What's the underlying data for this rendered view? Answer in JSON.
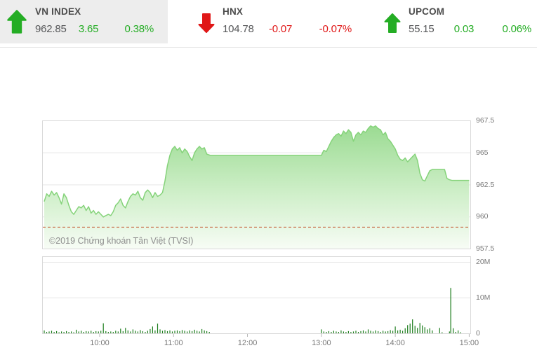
{
  "header": {
    "indices": [
      {
        "name": "VN INDEX",
        "value": "962.85",
        "change": "3.65",
        "change_pct": "0.38%",
        "direction": "up",
        "highlighted": true
      },
      {
        "name": "HNX",
        "value": "104.78",
        "change": "-0.07",
        "change_pct": "-0.07%",
        "direction": "down",
        "highlighted": false
      },
      {
        "name": "UPCOM",
        "value": "55.15",
        "change": "0.03",
        "change_pct": "0.06%",
        "direction": "up",
        "highlighted": false
      }
    ],
    "colors": {
      "up": "#24ad24",
      "down": "#e01717"
    }
  },
  "chart": {
    "copyright": "©2019 Chứng khoán Tân Việt (TVSI)",
    "colors": {
      "area_top": "#9bdb92",
      "area_mid": "#cfefc9",
      "area_bottom": "#f7fcf5",
      "line": "#85d37a",
      "volume_bar": "#1e7e1e",
      "ref_line": "#c25227",
      "gridline": "#e5e5e5",
      "plot_border": "#d9d9d9"
    }
  },
  "chart_data": [
    {
      "type": "area",
      "title": "VN-Index intraday price",
      "y_axis": {
        "min": 957.5,
        "max": 967.5,
        "ticks": [
          "967.5",
          "965",
          "962.5",
          "960",
          "957.5"
        ],
        "tick_values": [
          967.5,
          965,
          962.5,
          960,
          957.5
        ]
      },
      "x_axis": {
        "start": "09:00",
        "end": "15:00",
        "ticks": [
          "10:00",
          "11:00",
          "12:00",
          "13:00",
          "14:00",
          "15:00"
        ]
      },
      "previous_close": 959.2,
      "points": [
        [
          "09:15",
          961.2
        ],
        [
          "09:17",
          961.8
        ],
        [
          "09:19",
          961.6
        ],
        [
          "09:21",
          962.0
        ],
        [
          "09:23",
          961.7
        ],
        [
          "09:25",
          961.9
        ],
        [
          "09:27",
          961.5
        ],
        [
          "09:29",
          961.0
        ],
        [
          "09:31",
          961.8
        ],
        [
          "09:33",
          961.5
        ],
        [
          "09:35",
          960.9
        ],
        [
          "09:37",
          960.4
        ],
        [
          "09:39",
          960.2
        ],
        [
          "09:41",
          960.5
        ],
        [
          "09:43",
          960.8
        ],
        [
          "09:45",
          960.7
        ],
        [
          "09:47",
          960.9
        ],
        [
          "09:49",
          960.5
        ],
        [
          "09:51",
          960.8
        ],
        [
          "09:53",
          960.3
        ],
        [
          "09:55",
          960.5
        ],
        [
          "09:57",
          960.2
        ],
        [
          "09:59",
          960.4
        ],
        [
          "10:01",
          960.2
        ],
        [
          "10:03",
          960.0
        ],
        [
          "10:05",
          960.1
        ],
        [
          "10:07",
          960.2
        ],
        [
          "10:09",
          960.1
        ],
        [
          "10:11",
          960.4
        ],
        [
          "10:13",
          960.9
        ],
        [
          "10:15",
          961.1
        ],
        [
          "10:17",
          961.4
        ],
        [
          "10:19",
          960.9
        ],
        [
          "10:21",
          960.7
        ],
        [
          "10:23",
          961.2
        ],
        [
          "10:25",
          961.6
        ],
        [
          "10:27",
          961.8
        ],
        [
          "10:29",
          961.7
        ],
        [
          "10:31",
          962.0
        ],
        [
          "10:33",
          961.5
        ],
        [
          "10:35",
          961.3
        ],
        [
          "10:37",
          961.9
        ],
        [
          "10:39",
          962.1
        ],
        [
          "10:41",
          961.9
        ],
        [
          "10:43",
          961.5
        ],
        [
          "10:45",
          961.9
        ],
        [
          "10:47",
          961.6
        ],
        [
          "10:49",
          961.7
        ],
        [
          "10:51",
          961.9
        ],
        [
          "10:53",
          962.8
        ],
        [
          "10:55",
          964.0
        ],
        [
          "10:57",
          964.8
        ],
        [
          "10:59",
          965.3
        ],
        [
          "11:01",
          965.5
        ],
        [
          "11:03",
          965.2
        ],
        [
          "11:05",
          965.4
        ],
        [
          "11:07",
          965.0
        ],
        [
          "11:09",
          965.3
        ],
        [
          "11:11",
          965.1
        ],
        [
          "11:13",
          964.7
        ],
        [
          "11:15",
          964.4
        ],
        [
          "11:17",
          965.0
        ],
        [
          "11:19",
          965.3
        ],
        [
          "11:21",
          965.5
        ],
        [
          "11:23",
          965.3
        ],
        [
          "11:25",
          965.4
        ],
        [
          "11:27",
          964.9
        ],
        [
          "11:30",
          964.8
        ],
        [
          "13:00",
          964.8
        ],
        [
          "13:02",
          965.2
        ],
        [
          "13:04",
          965.1
        ],
        [
          "13:06",
          965.5
        ],
        [
          "13:08",
          965.9
        ],
        [
          "13:10",
          966.2
        ],
        [
          "13:12",
          966.4
        ],
        [
          "13:14",
          966.5
        ],
        [
          "13:16",
          966.3
        ],
        [
          "13:18",
          966.7
        ],
        [
          "13:20",
          966.5
        ],
        [
          "13:22",
          966.8
        ],
        [
          "13:24",
          966.6
        ],
        [
          "13:26",
          965.9
        ],
        [
          "13:28",
          966.4
        ],
        [
          "13:30",
          966.6
        ],
        [
          "13:32",
          966.4
        ],
        [
          "13:34",
          966.7
        ],
        [
          "13:36",
          966.6
        ],
        [
          "13:38",
          966.9
        ],
        [
          "13:40",
          967.1
        ],
        [
          "13:42",
          967.0
        ],
        [
          "13:44",
          967.1
        ],
        [
          "13:46",
          966.9
        ],
        [
          "13:48",
          966.8
        ],
        [
          "13:50",
          966.4
        ],
        [
          "13:52",
          966.6
        ],
        [
          "13:54",
          966.1
        ],
        [
          "13:56",
          965.9
        ],
        [
          "13:58",
          965.6
        ],
        [
          "14:00",
          965.3
        ],
        [
          "14:02",
          964.8
        ],
        [
          "14:04",
          964.5
        ],
        [
          "14:06",
          964.4
        ],
        [
          "14:08",
          964.6
        ],
        [
          "14:10",
          964.3
        ],
        [
          "14:12",
          964.5
        ],
        [
          "14:14",
          964.7
        ],
        [
          "14:16",
          964.9
        ],
        [
          "14:18",
          964.4
        ],
        [
          "14:20",
          963.4
        ],
        [
          "14:22",
          962.9
        ],
        [
          "14:24",
          962.8
        ],
        [
          "14:26",
          963.2
        ],
        [
          "14:28",
          963.6
        ],
        [
          "14:30",
          963.7
        ],
        [
          "14:40",
          963.7
        ],
        [
          "14:42",
          963.0
        ],
        [
          "14:44",
          962.9
        ],
        [
          "14:46",
          962.85
        ],
        [
          "15:00",
          962.85
        ]
      ]
    },
    {
      "type": "bar",
      "title": "Trading volume",
      "unit": "M shares",
      "y_axis": {
        "min": 0,
        "max": 21.6,
        "ticks": [
          "20M",
          "10M",
          "0"
        ],
        "tick_values": [
          20,
          10,
          0
        ]
      },
      "points": [
        [
          "09:15",
          0.9
        ],
        [
          "09:17",
          0.5
        ],
        [
          "09:19",
          0.6
        ],
        [
          "09:21",
          0.8
        ],
        [
          "09:23",
          0.5
        ],
        [
          "09:25",
          0.7
        ],
        [
          "09:27",
          0.4
        ],
        [
          "09:29",
          0.6
        ],
        [
          "09:31",
          0.5
        ],
        [
          "09:33",
          0.7
        ],
        [
          "09:35",
          0.5
        ],
        [
          "09:37",
          0.6
        ],
        [
          "09:39",
          0.4
        ],
        [
          "09:41",
          1.1
        ],
        [
          "09:43",
          0.6
        ],
        [
          "09:45",
          0.8
        ],
        [
          "09:47",
          0.5
        ],
        [
          "09:49",
          0.7
        ],
        [
          "09:51",
          0.6
        ],
        [
          "09:53",
          0.8
        ],
        [
          "09:55",
          0.5
        ],
        [
          "09:57",
          0.7
        ],
        [
          "09:59",
          0.6
        ],
        [
          "10:01",
          0.8
        ],
        [
          "10:03",
          2.9
        ],
        [
          "10:05",
          0.7
        ],
        [
          "10:07",
          0.5
        ],
        [
          "10:09",
          0.6
        ],
        [
          "10:11",
          0.5
        ],
        [
          "10:13",
          0.8
        ],
        [
          "10:15",
          0.6
        ],
        [
          "10:17",
          1.4
        ],
        [
          "10:19",
          0.7
        ],
        [
          "10:21",
          1.6
        ],
        [
          "10:23",
          0.9
        ],
        [
          "10:25",
          0.6
        ],
        [
          "10:27",
          1.2
        ],
        [
          "10:29",
          0.8
        ],
        [
          "10:31",
          0.6
        ],
        [
          "10:33",
          1.0
        ],
        [
          "10:35",
          0.7
        ],
        [
          "10:37",
          0.5
        ],
        [
          "10:39",
          0.8
        ],
        [
          "10:41",
          1.3
        ],
        [
          "10:43",
          2.0
        ],
        [
          "10:45",
          0.9
        ],
        [
          "10:47",
          2.8
        ],
        [
          "10:49",
          1.2
        ],
        [
          "10:51",
          0.8
        ],
        [
          "10:53",
          1.0
        ],
        [
          "10:55",
          0.7
        ],
        [
          "10:57",
          0.9
        ],
        [
          "10:59",
          0.6
        ],
        [
          "11:01",
          0.8
        ],
        [
          "11:03",
          0.9
        ],
        [
          "11:05",
          0.7
        ],
        [
          "11:07",
          1.0
        ],
        [
          "11:09",
          0.8
        ],
        [
          "11:11",
          0.6
        ],
        [
          "11:13",
          0.9
        ],
        [
          "11:15",
          0.7
        ],
        [
          "11:17",
          1.1
        ],
        [
          "11:19",
          0.8
        ],
        [
          "11:21",
          0.6
        ],
        [
          "11:23",
          1.3
        ],
        [
          "11:25",
          0.9
        ],
        [
          "11:27",
          0.7
        ],
        [
          "11:29",
          0.5
        ],
        [
          "13:00",
          1.2
        ],
        [
          "13:02",
          0.6
        ],
        [
          "13:04",
          0.5
        ],
        [
          "13:06",
          0.7
        ],
        [
          "13:08",
          0.5
        ],
        [
          "13:10",
          0.8
        ],
        [
          "13:12",
          0.6
        ],
        [
          "13:14",
          0.5
        ],
        [
          "13:16",
          0.9
        ],
        [
          "13:18",
          0.6
        ],
        [
          "13:20",
          0.5
        ],
        [
          "13:22",
          0.7
        ],
        [
          "13:24",
          0.5
        ],
        [
          "13:26",
          0.6
        ],
        [
          "13:28",
          0.8
        ],
        [
          "13:30",
          0.5
        ],
        [
          "13:32",
          0.7
        ],
        [
          "13:34",
          0.9
        ],
        [
          "13:36",
          0.6
        ],
        [
          "13:38",
          1.2
        ],
        [
          "13:40",
          0.8
        ],
        [
          "13:42",
          0.6
        ],
        [
          "13:44",
          0.9
        ],
        [
          "13:46",
          0.7
        ],
        [
          "13:48",
          0.5
        ],
        [
          "13:50",
          0.8
        ],
        [
          "13:52",
          0.6
        ],
        [
          "13:54",
          0.7
        ],
        [
          "13:56",
          1.0
        ],
        [
          "13:58",
          0.8
        ],
        [
          "14:00",
          2.0
        ],
        [
          "14:02",
          0.9
        ],
        [
          "14:04",
          1.1
        ],
        [
          "14:06",
          0.8
        ],
        [
          "14:08",
          1.5
        ],
        [
          "14:10",
          2.4
        ],
        [
          "14:12",
          2.8
        ],
        [
          "14:14",
          4.0
        ],
        [
          "14:16",
          2.2
        ],
        [
          "14:18",
          1.6
        ],
        [
          "14:20",
          3.0
        ],
        [
          "14:22",
          2.3
        ],
        [
          "14:24",
          1.8
        ],
        [
          "14:26",
          1.2
        ],
        [
          "14:28",
          1.5
        ],
        [
          "14:30",
          0.9
        ],
        [
          "14:36",
          1.6
        ],
        [
          "14:38",
          0.4
        ],
        [
          "14:44",
          0.6
        ],
        [
          "14:45",
          12.8
        ],
        [
          "14:47",
          1.5
        ],
        [
          "14:49",
          0.5
        ],
        [
          "14:51",
          0.9
        ],
        [
          "14:53",
          0.4
        ]
      ]
    }
  ]
}
